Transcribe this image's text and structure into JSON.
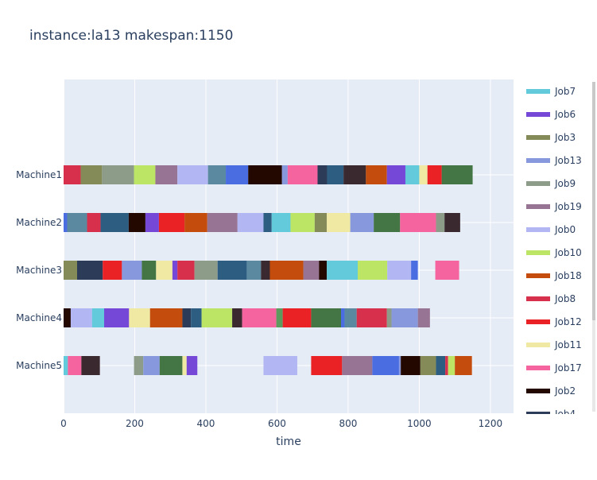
{
  "chart_data": {
    "type": "gantt",
    "title": "instance:la13 makespan:1150",
    "xlabel": "time",
    "ylabel": "",
    "xlim": [
      0,
      1265
    ],
    "xticks": [
      0,
      200,
      400,
      600,
      800,
      1000,
      1200
    ],
    "machines": [
      "Machine1",
      "Machine2",
      "Machine3",
      "Machine4",
      "Machine5"
    ],
    "legend": [
      {
        "name": "Job7",
        "color": "#62cadb"
      },
      {
        "name": "Job6",
        "color": "#7548d8"
      },
      {
        "name": "Job3",
        "color": "#858b58"
      },
      {
        "name": "Job13",
        "color": "#8799dc"
      },
      {
        "name": "Job9",
        "color": "#8d9c88"
      },
      {
        "name": "Job19",
        "color": "#987494"
      },
      {
        "name": "Job0",
        "color": "#b2b7f3"
      },
      {
        "name": "Job10",
        "color": "#bce465"
      },
      {
        "name": "Job18",
        "color": "#c44d0d"
      },
      {
        "name": "Job8",
        "color": "#d6304c"
      },
      {
        "name": "Job12",
        "color": "#ea2226"
      },
      {
        "name": "Job11",
        "color": "#efe9a4"
      },
      {
        "name": "Job17",
        "color": "#f5649f"
      },
      {
        "name": "Job2",
        "color": "#230800"
      },
      {
        "name": "Job4",
        "color": "#2c3c58"
      }
    ],
    "tasks": [
      {
        "machine": "Machine1",
        "start": 0,
        "end": 48,
        "color": "#d6304c"
      },
      {
        "machine": "Machine1",
        "start": 48,
        "end": 108,
        "color": "#858b58"
      },
      {
        "machine": "Machine1",
        "start": 108,
        "end": 198,
        "color": "#8d9c88"
      },
      {
        "machine": "Machine1",
        "start": 198,
        "end": 258,
        "color": "#bce465"
      },
      {
        "machine": "Machine1",
        "start": 258,
        "end": 320,
        "color": "#987494"
      },
      {
        "machine": "Machine1",
        "start": 320,
        "end": 406,
        "color": "#b2b7f3"
      },
      {
        "machine": "Machine1",
        "start": 406,
        "end": 456,
        "color": "#5a89a0"
      },
      {
        "machine": "Machine1",
        "start": 456,
        "end": 519,
        "color": "#4a6de2"
      },
      {
        "machine": "Machine1",
        "start": 519,
        "end": 614,
        "color": "#230800"
      },
      {
        "machine": "Machine1",
        "start": 614,
        "end": 630,
        "color": "#8799dc"
      },
      {
        "machine": "Machine1",
        "start": 630,
        "end": 714,
        "color": "#f5649f"
      },
      {
        "machine": "Machine1",
        "start": 714,
        "end": 741,
        "color": "#2c3c58"
      },
      {
        "machine": "Machine1",
        "start": 741,
        "end": 787,
        "color": "#2d5e82"
      },
      {
        "machine": "Machine1",
        "start": 787,
        "end": 850,
        "color": "#3a2a2f"
      },
      {
        "machine": "Machine1",
        "start": 850,
        "end": 909,
        "color": "#c44d0d"
      },
      {
        "machine": "Machine1",
        "start": 909,
        "end": 961,
        "color": "#7548d8"
      },
      {
        "machine": "Machine1",
        "start": 961,
        "end": 1000,
        "color": "#62cadb"
      },
      {
        "machine": "Machine1",
        "start": 1000,
        "end": 1023,
        "color": "#efe9a4"
      },
      {
        "machine": "Machine1",
        "start": 1023,
        "end": 1063,
        "color": "#ea2226"
      },
      {
        "machine": "Machine1",
        "start": 1063,
        "end": 1150,
        "color": "#447544"
      },
      {
        "machine": "Machine2",
        "start": 0,
        "end": 10,
        "color": "#4a6de2"
      },
      {
        "machine": "Machine2",
        "start": 10,
        "end": 66,
        "color": "#5a89a0"
      },
      {
        "machine": "Machine2",
        "start": 66,
        "end": 104,
        "color": "#d6304c"
      },
      {
        "machine": "Machine2",
        "start": 104,
        "end": 183,
        "color": "#2d5e82"
      },
      {
        "machine": "Machine2",
        "start": 183,
        "end": 230,
        "color": "#230800"
      },
      {
        "machine": "Machine2",
        "start": 230,
        "end": 268,
        "color": "#7548d8"
      },
      {
        "machine": "Machine2",
        "start": 268,
        "end": 340,
        "color": "#ea2226"
      },
      {
        "machine": "Machine2",
        "start": 340,
        "end": 404,
        "color": "#c44d0d"
      },
      {
        "machine": "Machine2",
        "start": 404,
        "end": 489,
        "color": "#987494"
      },
      {
        "machine": "Machine2",
        "start": 489,
        "end": 562,
        "color": "#b2b7f3"
      },
      {
        "machine": "Machine2",
        "start": 562,
        "end": 585,
        "color": "#2d5e82"
      },
      {
        "machine": "Machine2",
        "start": 585,
        "end": 638,
        "color": "#62cadb"
      },
      {
        "machine": "Machine2",
        "start": 638,
        "end": 706,
        "color": "#bce465"
      },
      {
        "machine": "Machine2",
        "start": 706,
        "end": 740,
        "color": "#858b58"
      },
      {
        "machine": "Machine2",
        "start": 740,
        "end": 806,
        "color": "#efe9a4"
      },
      {
        "machine": "Machine2",
        "start": 806,
        "end": 872,
        "color": "#8799dc"
      },
      {
        "machine": "Machine2",
        "start": 872,
        "end": 946,
        "color": "#447544"
      },
      {
        "machine": "Machine2",
        "start": 946,
        "end": 1047,
        "color": "#f5649f"
      },
      {
        "machine": "Machine2",
        "start": 1047,
        "end": 1071,
        "color": "#8d9c88"
      },
      {
        "machine": "Machine2",
        "start": 1071,
        "end": 1115,
        "color": "#3a2a2f"
      },
      {
        "machine": "Machine3",
        "start": 0,
        "end": 38,
        "color": "#858b58"
      },
      {
        "machine": "Machine3",
        "start": 38,
        "end": 110,
        "color": "#2c3c58"
      },
      {
        "machine": "Machine3",
        "start": 110,
        "end": 164,
        "color": "#ea2226"
      },
      {
        "machine": "Machine3",
        "start": 164,
        "end": 220,
        "color": "#8799dc"
      },
      {
        "machine": "Machine3",
        "start": 220,
        "end": 260,
        "color": "#447544"
      },
      {
        "machine": "Machine3",
        "start": 260,
        "end": 306,
        "color": "#efe9a4"
      },
      {
        "machine": "Machine3",
        "start": 306,
        "end": 320,
        "color": "#7548d8"
      },
      {
        "machine": "Machine3",
        "start": 320,
        "end": 368,
        "color": "#d6304c"
      },
      {
        "machine": "Machine3",
        "start": 368,
        "end": 433,
        "color": "#8d9c88"
      },
      {
        "machine": "Machine3",
        "start": 433,
        "end": 515,
        "color": "#2d5e82"
      },
      {
        "machine": "Machine3",
        "start": 515,
        "end": 555,
        "color": "#5a89a0"
      },
      {
        "machine": "Machine3",
        "start": 555,
        "end": 580,
        "color": "#3a2a2f"
      },
      {
        "machine": "Machine3",
        "start": 580,
        "end": 674,
        "color": "#c44d0d"
      },
      {
        "machine": "Machine3",
        "start": 674,
        "end": 718,
        "color": "#987494"
      },
      {
        "machine": "Machine3",
        "start": 718,
        "end": 740,
        "color": "#230800"
      },
      {
        "machine": "Machine3",
        "start": 740,
        "end": 827,
        "color": "#62cadb"
      },
      {
        "machine": "Machine3",
        "start": 827,
        "end": 910,
        "color": "#bce465"
      },
      {
        "machine": "Machine3",
        "start": 910,
        "end": 977,
        "color": "#b2b7f3"
      },
      {
        "machine": "Machine3",
        "start": 977,
        "end": 996,
        "color": "#4a6de2"
      },
      {
        "machine": "Machine3",
        "start": 1045,
        "end": 1112,
        "color": "#f5649f"
      },
      {
        "machine": "Machine4",
        "start": 0,
        "end": 20,
        "color": "#230800"
      },
      {
        "machine": "Machine4",
        "start": 20,
        "end": 80,
        "color": "#b2b7f3"
      },
      {
        "machine": "Machine4",
        "start": 80,
        "end": 114,
        "color": "#62cadb"
      },
      {
        "machine": "Machine4",
        "start": 114,
        "end": 184,
        "color": "#7548d8"
      },
      {
        "machine": "Machine4",
        "start": 184,
        "end": 243,
        "color": "#efe9a4"
      },
      {
        "machine": "Machine4",
        "start": 243,
        "end": 334,
        "color": "#c44d0d"
      },
      {
        "machine": "Machine4",
        "start": 334,
        "end": 358,
        "color": "#2c3c58"
      },
      {
        "machine": "Machine4",
        "start": 358,
        "end": 388,
        "color": "#2d5e82"
      },
      {
        "machine": "Machine4",
        "start": 388,
        "end": 474,
        "color": "#bce465"
      },
      {
        "machine": "Machine4",
        "start": 474,
        "end": 502,
        "color": "#3a2a2f"
      },
      {
        "machine": "Machine4",
        "start": 502,
        "end": 598,
        "color": "#f5649f"
      },
      {
        "machine": "Machine4",
        "start": 598,
        "end": 616,
        "color": "#5d9a5d"
      },
      {
        "machine": "Machine4",
        "start": 616,
        "end": 696,
        "color": "#ea2226"
      },
      {
        "machine": "Machine4",
        "start": 696,
        "end": 780,
        "color": "#447544"
      },
      {
        "machine": "Machine4",
        "start": 780,
        "end": 790,
        "color": "#4a6de2"
      },
      {
        "machine": "Machine4",
        "start": 790,
        "end": 824,
        "color": "#5a89a0"
      },
      {
        "machine": "Machine4",
        "start": 824,
        "end": 909,
        "color": "#d6304c"
      },
      {
        "machine": "Machine4",
        "start": 909,
        "end": 922,
        "color": "#8d9c88"
      },
      {
        "machine": "Machine4",
        "start": 922,
        "end": 996,
        "color": "#8799dc"
      },
      {
        "machine": "Machine4",
        "start": 996,
        "end": 1030,
        "color": "#987494"
      },
      {
        "machine": "Machine5",
        "start": 0,
        "end": 12,
        "color": "#62cadb"
      },
      {
        "machine": "Machine5",
        "start": 12,
        "end": 50,
        "color": "#f5649f"
      },
      {
        "machine": "Machine5",
        "start": 50,
        "end": 102,
        "color": "#3a2a2f"
      },
      {
        "machine": "Machine5",
        "start": 198,
        "end": 224,
        "color": "#8d9c88"
      },
      {
        "machine": "Machine5",
        "start": 224,
        "end": 270,
        "color": "#8799dc"
      },
      {
        "machine": "Machine5",
        "start": 270,
        "end": 334,
        "color": "#447544"
      },
      {
        "machine": "Machine5",
        "start": 334,
        "end": 346,
        "color": "#efe9a4"
      },
      {
        "machine": "Machine5",
        "start": 346,
        "end": 376,
        "color": "#7548d8"
      },
      {
        "machine": "Machine5",
        "start": 562,
        "end": 657,
        "color": "#b2b7f3"
      },
      {
        "machine": "Machine5",
        "start": 696,
        "end": 783,
        "color": "#ea2226"
      },
      {
        "machine": "Machine5",
        "start": 783,
        "end": 868,
        "color": "#987494"
      },
      {
        "machine": "Machine5",
        "start": 868,
        "end": 943,
        "color": "#4a6de2"
      },
      {
        "machine": "Machine5",
        "start": 943,
        "end": 948,
        "color": "#8799dc"
      },
      {
        "machine": "Machine5",
        "start": 948,
        "end": 1003,
        "color": "#230800"
      },
      {
        "machine": "Machine5",
        "start": 1003,
        "end": 1047,
        "color": "#858b58"
      },
      {
        "machine": "Machine5",
        "start": 1047,
        "end": 1073,
        "color": "#2d5e82"
      },
      {
        "machine": "Machine5",
        "start": 1073,
        "end": 1081,
        "color": "#d6304c"
      },
      {
        "machine": "Machine5",
        "start": 1081,
        "end": 1100,
        "color": "#bce465"
      },
      {
        "machine": "Machine5",
        "start": 1100,
        "end": 1148,
        "color": "#c44d0d"
      }
    ]
  }
}
